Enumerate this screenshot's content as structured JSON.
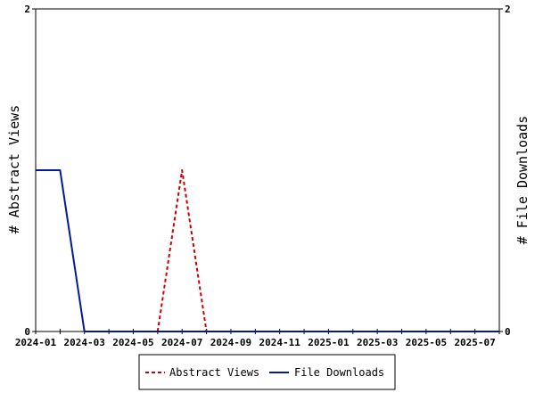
{
  "chart_data": {
    "type": "line",
    "x": [
      "2024-01",
      "2024-02",
      "2024-03",
      "2024-04",
      "2024-05",
      "2024-06",
      "2024-07",
      "2024-08",
      "2024-09",
      "2024-10",
      "2024-11",
      "2024-12",
      "2025-01",
      "2025-02",
      "2025-03",
      "2025-04",
      "2025-05",
      "2025-06",
      "2025-07",
      "2025-08"
    ],
    "x_tick_labels": [
      "2024-01",
      "2024-03",
      "2024-05",
      "2024-07",
      "2024-09",
      "2024-11",
      "2025-01",
      "2025-03",
      "2025-05",
      "2025-07"
    ],
    "series": [
      {
        "name": "Abstract Views",
        "axis": "left",
        "color": "#cc0000",
        "dash": "dashed",
        "values": [
          null,
          null,
          null,
          null,
          null,
          0,
          1,
          0,
          null,
          null,
          null,
          null,
          null,
          null,
          null,
          null,
          null,
          null,
          null,
          null
        ]
      },
      {
        "name": "File Downloads",
        "axis": "right",
        "color": "#001a99",
        "dash": "solid",
        "values": [
          1,
          1,
          0,
          0,
          0,
          0,
          0,
          0,
          0,
          0,
          0,
          0,
          0,
          0,
          0,
          0,
          0,
          0,
          0,
          0
        ]
      }
    ],
    "ylabel": "# Abstract Views",
    "y2label": "# File Downloads",
    "ylim": [
      0,
      2
    ],
    "y2lim": [
      0,
      2
    ],
    "y_ticks": [
      "0",
      "2"
    ],
    "y2_ticks": [
      "0",
      "2"
    ],
    "grid": false,
    "legend_position": "bottom"
  }
}
